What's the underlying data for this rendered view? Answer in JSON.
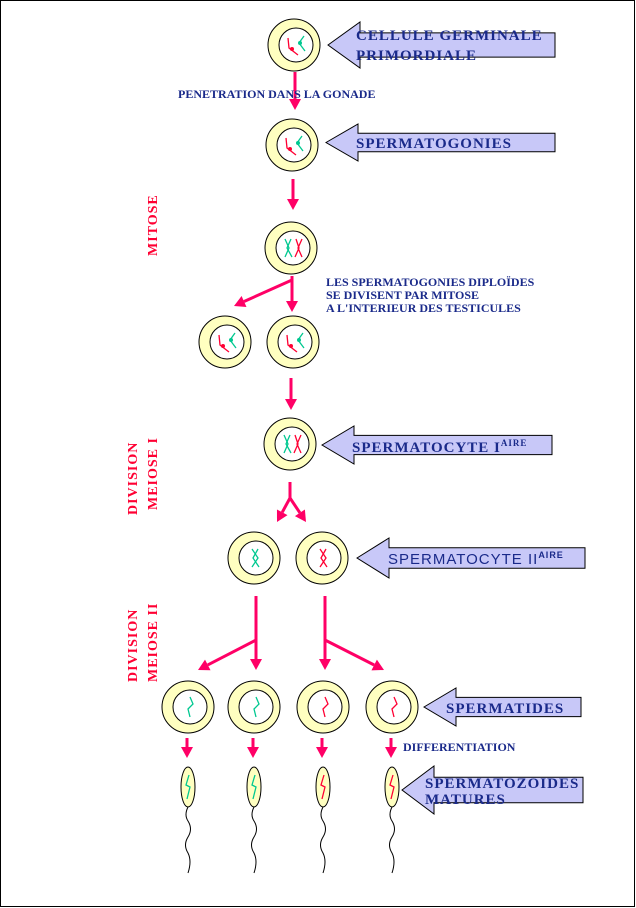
{
  "labels": {
    "primordial": [
      "CELLULE GERMINALE",
      "PRIMORDIALE"
    ],
    "spermatogonies": "SPERMATOGONIES",
    "spermatocyte1": "SPERMATOCYTE I",
    "spermatocyte1_sup": "AIRE",
    "spermatocyte2": "SPERMATOCYTE II",
    "spermatocyte2_sup": "AIRE",
    "spermatides": "SPERMATIDES",
    "spermatozoides": [
      "SPERMATOZOIDES",
      "MATURES"
    ]
  },
  "annotations": {
    "penetration": "PENETRATION DANS LA GONADE",
    "mitosis_note": [
      "LES SPERMATOGONIES DIPLOÏDES",
      "SE DIVISENT PAR MITOSE",
      "A L'INTERIEUR DES TESTICULES"
    ],
    "differentiation": "DIFFERENTIATION"
  },
  "stages": {
    "mitose": "MITOSE",
    "meiose1": [
      "DIVISION",
      "MEIOSE I"
    ],
    "meiose2": [
      "DIVISION",
      "MEIOSE II"
    ]
  },
  "colors": {
    "arrow": "#ff0066",
    "cell_fill": "#ffffc0",
    "label_fill": "#c8c8f8",
    "label_text": "#1a2a8a",
    "stage_text": "#ff0033",
    "chromosome_teal": "#00c890",
    "chromosome_red": "#ff0033"
  }
}
